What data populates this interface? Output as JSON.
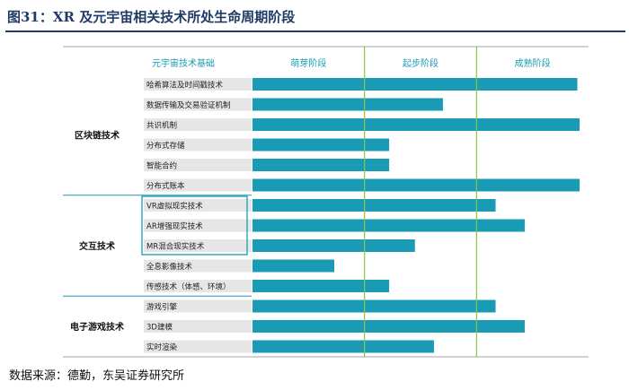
{
  "figure": {
    "title": "图31：XR 及元宇宙相关技术所处生命周期阶段",
    "source": "数据来源：德勤，东吴证券研究所"
  },
  "colors": {
    "bar": "#1a9bb5",
    "header_text": "#1a9bb5",
    "stage_line": "#8dc63f",
    "row_band": "#e6e6e6",
    "group_line": "#1a9bb5",
    "title": "#1f3b66"
  },
  "chart_data": {
    "type": "bar",
    "orientation": "horizontal",
    "value_axis": {
      "min": 0,
      "max": 3,
      "stages": [
        "萌芽阶段",
        "起步阶段",
        "成熟阶段"
      ]
    },
    "column_header": "元宇宙技术基础",
    "groups": [
      {
        "name": "区块链技术",
        "start": 0,
        "end": 6
      },
      {
        "name": "交互技术",
        "start": 6,
        "end": 11
      },
      {
        "name": "电子游戏技术",
        "start": 11,
        "end": 14
      }
    ],
    "categories": [
      "哈希算法及时间戳技术",
      "数据传输及交易验证机制",
      "共识机制",
      "分布式存储",
      "智能合约",
      "分布式账本",
      "VR虚拟现实技术",
      "AR增强现实技术",
      "MR混合现实技术",
      "全息影像技术",
      "传感技术（体感、环境）",
      "游戏引擎",
      "3D建模",
      "实时渲染"
    ],
    "values": [
      2.9,
      1.7,
      2.92,
      1.22,
      1.22,
      2.92,
      2.17,
      2.43,
      1.45,
      0.73,
      1.22,
      2.17,
      2.43,
      1.62
    ],
    "boxed_categories": [
      6,
      7,
      8
    ]
  }
}
